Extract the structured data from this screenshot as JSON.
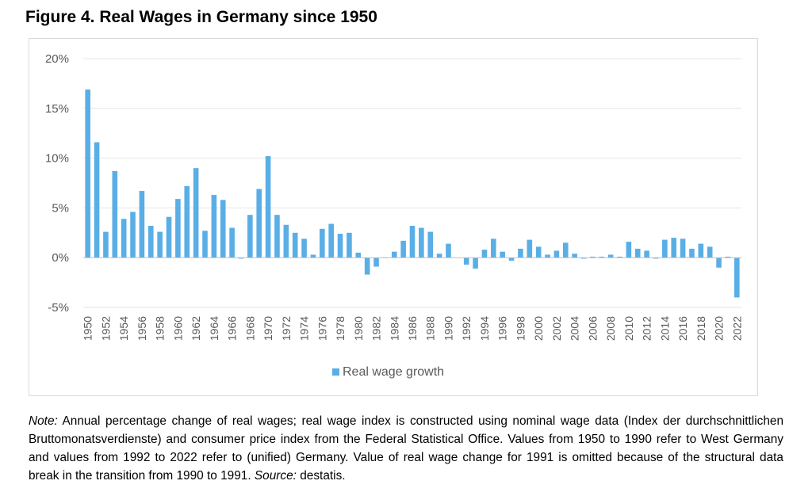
{
  "figure": {
    "title": "Figure 4. Real Wages in Germany since 1950"
  },
  "note": {
    "label": "Note:",
    "text": " Annual percentage change of real wages; real wage index is constructed using nominal wage data (Index der durchschnittlichen Bruttomonatsverdienste) and consumer price index from the Federal Statistical Office. Values from 1950 to 1990 refer to West Germany and values from 1992 to 2022 refer to (unified) Germany. Value of real wage change for 1991 is omitted because of the structural data break in the transition from 1990 to 1991. ",
    "source_label": "Source:",
    "source_text": " destatis."
  },
  "chart_data": {
    "type": "bar",
    "title": "",
    "xlabel": "",
    "ylabel": "",
    "ylim": [
      -5,
      20
    ],
    "yticks": [
      -5,
      0,
      5,
      10,
      15,
      20
    ],
    "ytick_labels": [
      "-5%",
      "0%",
      "5%",
      "10%",
      "15%",
      "20%"
    ],
    "xtick_labels": [
      "1950",
      "1952",
      "1954",
      "1956",
      "1958",
      "1960",
      "1962",
      "1964",
      "1966",
      "1968",
      "1970",
      "1972",
      "1974",
      "1976",
      "1978",
      "1980",
      "1982",
      "1984",
      "1986",
      "1988",
      "1990",
      "1992",
      "1994",
      "1996",
      "1998",
      "2000",
      "2002",
      "2004",
      "2006",
      "2008",
      "2010",
      "2012",
      "2014",
      "2016",
      "2018",
      "2020",
      "2022"
    ],
    "grid": "horizontal",
    "legend_position": "bottom",
    "bar_color": "#5aaee6",
    "categories": [
      "1950",
      "1951",
      "1952",
      "1953",
      "1954",
      "1955",
      "1956",
      "1957",
      "1958",
      "1959",
      "1960",
      "1961",
      "1962",
      "1963",
      "1964",
      "1965",
      "1966",
      "1967",
      "1968",
      "1969",
      "1970",
      "1971",
      "1972",
      "1973",
      "1974",
      "1975",
      "1976",
      "1977",
      "1978",
      "1979",
      "1980",
      "1981",
      "1982",
      "1983",
      "1984",
      "1985",
      "1986",
      "1987",
      "1988",
      "1989",
      "1990",
      "1991",
      "1992",
      "1993",
      "1994",
      "1995",
      "1996",
      "1997",
      "1998",
      "1999",
      "2000",
      "2001",
      "2002",
      "2003",
      "2004",
      "2005",
      "2006",
      "2007",
      "2008",
      "2009",
      "2010",
      "2011",
      "2012",
      "2013",
      "2014",
      "2015",
      "2016",
      "2017",
      "2018",
      "2019",
      "2020",
      "2021",
      "2022"
    ],
    "series": [
      {
        "name": "Real wage growth",
        "values": [
          16.9,
          11.6,
          2.6,
          8.7,
          3.9,
          4.6,
          6.7,
          3.2,
          2.6,
          4.1,
          5.9,
          7.2,
          9.0,
          2.7,
          6.3,
          5.8,
          3.0,
          -0.1,
          4.3,
          6.9,
          10.2,
          4.3,
          3.3,
          2.5,
          1.9,
          0.3,
          2.9,
          3.4,
          2.4,
          2.5,
          0.5,
          -1.7,
          -0.9,
          0.0,
          0.6,
          1.7,
          3.2,
          3.0,
          2.6,
          0.4,
          1.4,
          null,
          -0.7,
          -1.1,
          0.8,
          1.9,
          0.6,
          -0.3,
          0.9,
          1.8,
          1.1,
          0.3,
          0.7,
          1.5,
          0.4,
          -0.1,
          0.1,
          0.1,
          0.3,
          0.1,
          1.6,
          0.9,
          0.7,
          -0.1,
          1.8,
          2.0,
          1.9,
          0.9,
          1.4,
          1.1,
          -1.0,
          0.1,
          -4.0
        ]
      }
    ]
  }
}
